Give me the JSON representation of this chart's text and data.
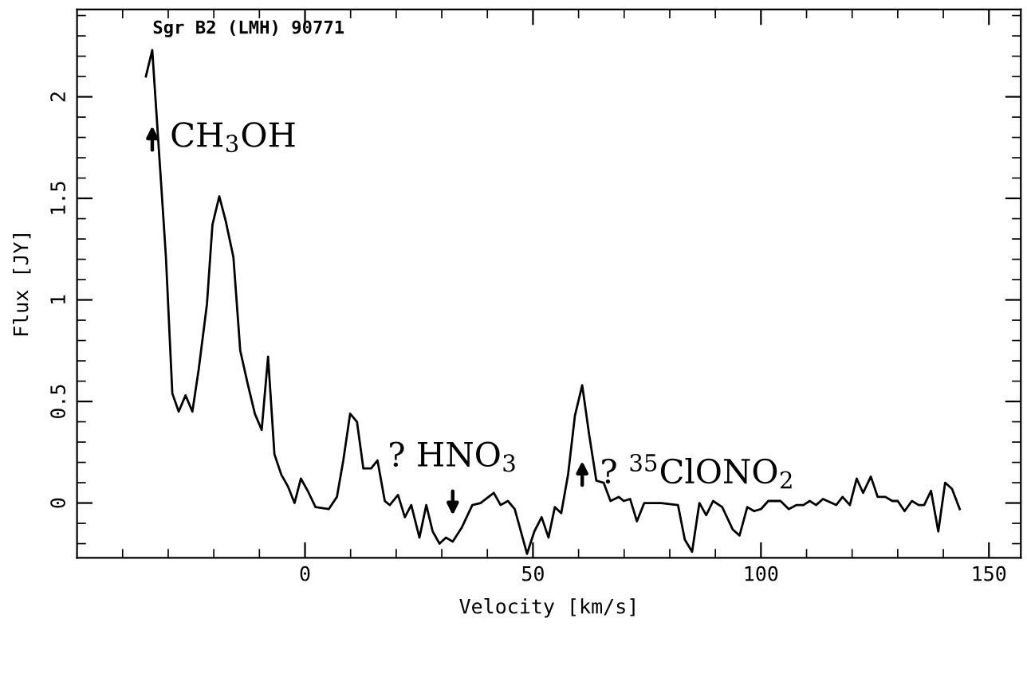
{
  "chart_data": {
    "type": "line",
    "title": "Sgr B2 (LMH) 90771",
    "xlabel": "Velocity [km/s]",
    "ylabel": "Flux [JY]",
    "x": [
      -34.9,
      -33.5,
      -31.4,
      -30.5,
      -29.1,
      -27.7,
      -26.2,
      -24.7,
      -23.3,
      -21.5,
      -20.3,
      -18.8,
      -17.4,
      -15.7,
      -14.2,
      -12.6,
      -11.0,
      -9.5,
      -8.1,
      -6.7,
      -5.2,
      -3.7,
      -2.3,
      -0.9,
      0.6,
      2.3,
      5.2,
      7.0,
      8.4,
      9.9,
      11.4,
      12.8,
      14.5,
      15.9,
      17.5,
      18.6,
      20.4,
      21.9,
      23.3,
      25.1,
      26.6,
      28.0,
      29.5,
      30.9,
      32.4,
      34.4,
      36.7,
      38.5,
      41.4,
      42.9,
      44.5,
      46.0,
      48.7,
      50.3,
      51.9,
      53.4,
      54.8,
      56.2,
      57.7,
      59.2,
      60.8,
      62.3,
      63.9,
      65.5,
      67.0,
      68.8,
      69.9,
      71.3,
      72.8,
      74.4,
      78.1,
      81.8,
      83.3,
      84.9,
      86.5,
      88.0,
      89.5,
      91.5,
      93.8,
      95.3,
      97.0,
      98.5,
      100.0,
      101.6,
      104.3,
      106.1,
      107.8,
      109.3,
      110.7,
      112.1,
      113.6,
      116.5,
      117.9,
      119.5,
      121.0,
      122.4,
      124.1,
      125.6,
      127.3,
      128.8,
      130.0,
      131.5,
      133.1,
      134.6,
      135.8,
      137.3,
      138.9,
      140.4,
      141.9,
      143.6
    ],
    "values": [
      2.1,
      2.23,
      1.52,
      1.21,
      0.54,
      0.45,
      0.53,
      0.45,
      0.66,
      0.98,
      1.37,
      1.51,
      1.39,
      1.21,
      0.75,
      0.59,
      0.44,
      0.36,
      0.72,
      0.24,
      0.14,
      0.08,
      0.0,
      0.12,
      0.06,
      -0.02,
      -0.03,
      0.03,
      0.21,
      0.44,
      0.4,
      0.17,
      0.17,
      0.21,
      0.01,
      -0.01,
      0.04,
      -0.07,
      -0.01,
      -0.17,
      -0.01,
      -0.14,
      -0.2,
      -0.17,
      -0.19,
      -0.12,
      -0.01,
      0.0,
      0.05,
      -0.01,
      0.01,
      -0.03,
      -0.25,
      -0.14,
      -0.07,
      -0.17,
      -0.02,
      -0.05,
      0.14,
      0.43,
      0.58,
      0.34,
      0.11,
      0.1,
      0.01,
      0.03,
      0.01,
      0.02,
      -0.09,
      0.0,
      0.0,
      -0.01,
      -0.18,
      -0.24,
      0.0,
      -0.06,
      0.01,
      -0.02,
      -0.13,
      -0.16,
      -0.02,
      -0.04,
      -0.03,
      0.01,
      0.01,
      -0.03,
      -0.01,
      -0.01,
      0.01,
      -0.01,
      0.02,
      -0.01,
      0.03,
      -0.01,
      0.12,
      0.05,
      0.13,
      0.03,
      0.03,
      0.01,
      0.01,
      -0.04,
      0.01,
      -0.01,
      -0.01,
      0.06,
      -0.14,
      0.1,
      0.07,
      -0.03
    ],
    "color": "#000000",
    "xlim": [
      -50,
      157
    ],
    "ylim": [
      -0.27,
      2.43
    ],
    "xticks": [
      {
        "value": -40,
        "label": null
      },
      {
        "value": -30,
        "label": null
      },
      {
        "value": -20,
        "label": null
      },
      {
        "value": -10,
        "label": null
      },
      0,
      {
        "value": 10,
        "label": null
      },
      {
        "value": 20,
        "label": null
      },
      {
        "value": 30,
        "label": null
      },
      {
        "value": 40,
        "label": null
      },
      50,
      {
        "value": 60,
        "label": null
      },
      {
        "value": 70,
        "label": null
      },
      {
        "value": 80,
        "label": null
      },
      {
        "value": 90,
        "label": null
      },
      100,
      {
        "value": 110,
        "label": null
      },
      {
        "value": 120,
        "label": null
      },
      {
        "value": 130,
        "label": null
      },
      {
        "value": 140,
        "label": null
      },
      150
    ],
    "yticks": [
      {
        "value": -0.2,
        "label": null
      },
      {
        "value": -0.1,
        "label": null
      },
      0,
      {
        "value": 0.1,
        "label": null
      },
      {
        "value": 0.2,
        "label": null
      },
      {
        "value": 0.3,
        "label": null
      },
      {
        "value": 0.4,
        "label": null
      },
      0.5,
      {
        "value": 0.6,
        "label": null
      },
      {
        "value": 0.7,
        "label": null
      },
      {
        "value": 0.8,
        "label": null
      },
      {
        "value": 0.9,
        "label": null
      },
      1,
      {
        "value": 1.1,
        "label": null
      },
      {
        "value": 1.2,
        "label": null
      },
      {
        "value": 1.3,
        "label": null
      },
      {
        "value": 1.4,
        "label": null
      },
      1.5,
      {
        "value": 1.6,
        "label": null
      },
      {
        "value": 1.7,
        "label": null
      },
      {
        "value": 1.8,
        "label": null
      },
      {
        "value": 1.9,
        "label": null
      },
      2,
      {
        "value": 2.1,
        "label": null
      },
      {
        "value": 2.2,
        "label": null
      },
      {
        "value": 2.3,
        "label": null
      },
      {
        "value": 2.4,
        "label": null
      }
    ],
    "annotations": [
      {
        "text": "CH$_{3}$OH",
        "x": -33.5,
        "y": 2.23
      },
      {
        "text": "? HNO$_{3}$",
        "x": 32.4,
        "y": -0.19
      },
      {
        "text": "? $^{35}$ClONO$_{2}$",
        "x": 60.8,
        "y": 0.58
      }
    ],
    "grid": false,
    "legend": false,
    "marker": "none",
    "line_style": "solid"
  }
}
